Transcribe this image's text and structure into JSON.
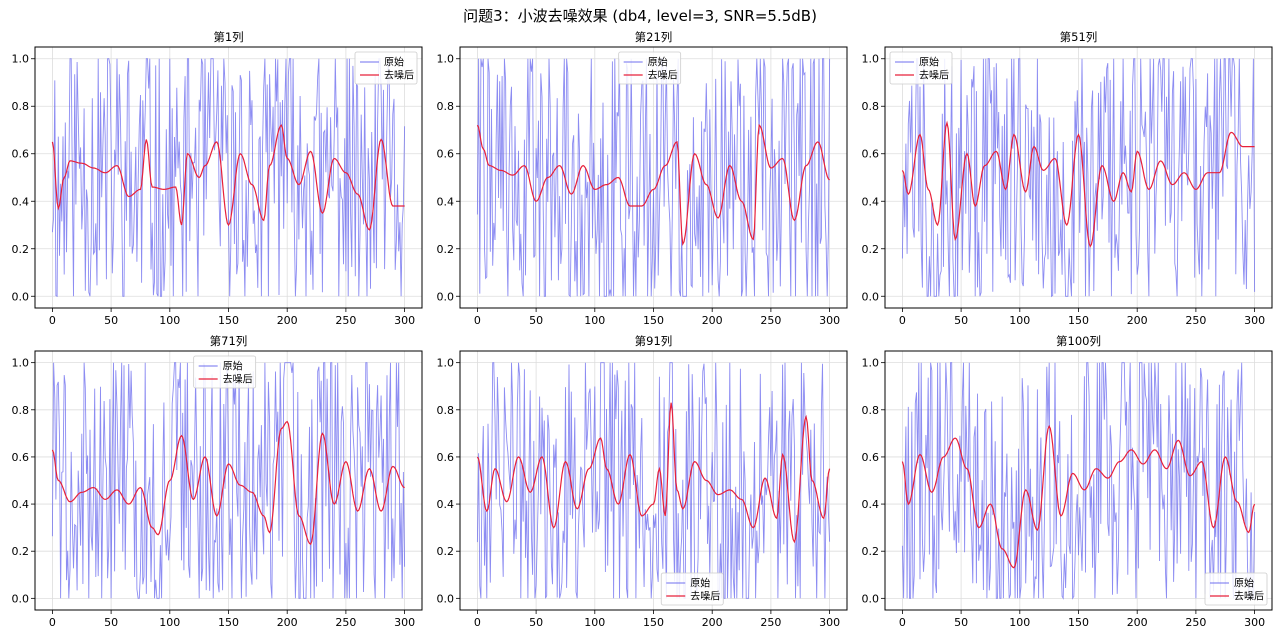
{
  "figure": {
    "title": "问题3：小波去噪效果 (db4, level=3, SNR=5.5dB)"
  },
  "colors": {
    "original": "#6666ee",
    "denoised": "#e8203a",
    "grid": "#dddddd",
    "axes": "#000000"
  },
  "chart_data": [
    {
      "type": "line",
      "title": "第1列",
      "xlim": [
        0,
        300
      ],
      "ylim": [
        0,
        1
      ],
      "xticks": [
        0,
        50,
        100,
        150,
        200,
        250,
        300
      ],
      "yticks": [
        0.0,
        0.2,
        0.4,
        0.6,
        0.8,
        1.0
      ],
      "grid": true,
      "legend": "top-right",
      "series": [
        {
          "name": "原始",
          "color": "#6666ee",
          "seed": 11
        },
        {
          "name": "去噪后",
          "color": "#e8203a",
          "x": [
            0,
            5,
            10,
            15,
            25,
            35,
            45,
            55,
            65,
            75,
            80,
            85,
            95,
            105,
            110,
            115,
            125,
            130,
            140,
            150,
            160,
            170,
            180,
            185,
            195,
            200,
            210,
            220,
            230,
            240,
            250,
            260,
            270,
            280,
            290,
            300
          ],
          "y": [
            0.65,
            0.37,
            0.5,
            0.57,
            0.56,
            0.54,
            0.52,
            0.55,
            0.42,
            0.45,
            0.66,
            0.46,
            0.45,
            0.46,
            0.3,
            0.6,
            0.5,
            0.55,
            0.65,
            0.3,
            0.6,
            0.47,
            0.32,
            0.55,
            0.72,
            0.58,
            0.47,
            0.61,
            0.35,
            0.58,
            0.52,
            0.43,
            0.28,
            0.66,
            0.38,
            0.38
          ]
        }
      ]
    },
    {
      "type": "line",
      "title": "第21列",
      "xlim": [
        0,
        300
      ],
      "ylim": [
        0,
        1
      ],
      "xticks": [
        0,
        50,
        100,
        150,
        200,
        250,
        300
      ],
      "yticks": [
        0.0,
        0.2,
        0.4,
        0.6,
        0.8,
        1.0
      ],
      "grid": true,
      "legend": "top-center",
      "series": [
        {
          "name": "原始",
          "color": "#6666ee",
          "seed": 22
        },
        {
          "name": "去噪后",
          "color": "#e8203a",
          "x": [
            0,
            5,
            10,
            20,
            30,
            40,
            50,
            60,
            70,
            80,
            90,
            100,
            110,
            120,
            130,
            140,
            150,
            160,
            170,
            175,
            185,
            195,
            205,
            215,
            225,
            235,
            240,
            250,
            260,
            270,
            280,
            290,
            300
          ],
          "y": [
            0.72,
            0.62,
            0.55,
            0.53,
            0.51,
            0.55,
            0.4,
            0.5,
            0.55,
            0.43,
            0.55,
            0.45,
            0.47,
            0.5,
            0.38,
            0.38,
            0.45,
            0.55,
            0.65,
            0.22,
            0.6,
            0.47,
            0.33,
            0.55,
            0.4,
            0.24,
            0.72,
            0.54,
            0.58,
            0.32,
            0.55,
            0.65,
            0.49
          ]
        }
      ]
    },
    {
      "type": "line",
      "title": "第51列",
      "xlim": [
        0,
        300
      ],
      "ylim": [
        0,
        1
      ],
      "xticks": [
        0,
        50,
        100,
        150,
        200,
        250,
        300
      ],
      "yticks": [
        0.0,
        0.2,
        0.4,
        0.6,
        0.8,
        1.0
      ],
      "grid": true,
      "legend": "top-left",
      "series": [
        {
          "name": "原始",
          "color": "#6666ee",
          "seed": 33
        },
        {
          "name": "去噪后",
          "color": "#e8203a",
          "x": [
            0,
            5,
            15,
            22,
            30,
            38,
            45,
            55,
            62,
            70,
            80,
            88,
            95,
            105,
            112,
            120,
            130,
            140,
            150,
            160,
            170,
            180,
            188,
            195,
            200,
            210,
            220,
            230,
            240,
            250,
            260,
            270,
            280,
            290,
            300
          ],
          "y": [
            0.53,
            0.43,
            0.68,
            0.45,
            0.3,
            0.73,
            0.24,
            0.6,
            0.38,
            0.55,
            0.61,
            0.45,
            0.68,
            0.44,
            0.63,
            0.53,
            0.58,
            0.3,
            0.68,
            0.21,
            0.55,
            0.4,
            0.52,
            0.44,
            0.61,
            0.45,
            0.57,
            0.47,
            0.52,
            0.45,
            0.52,
            0.52,
            0.69,
            0.63,
            0.63
          ]
        }
      ]
    },
    {
      "type": "line",
      "title": "第71列",
      "xlim": [
        0,
        300
      ],
      "ylim": [
        0,
        1
      ],
      "xticks": [
        0,
        50,
        100,
        150,
        200,
        250,
        300
      ],
      "yticks": [
        0.0,
        0.2,
        0.4,
        0.6,
        0.8,
        1.0
      ],
      "grid": true,
      "legend": "top-center",
      "series": [
        {
          "name": "原始",
          "color": "#6666ee",
          "seed": 44
        },
        {
          "name": "去噪后",
          "color": "#e8203a",
          "x": [
            0,
            5,
            15,
            25,
            35,
            45,
            55,
            65,
            75,
            85,
            90,
            100,
            110,
            120,
            130,
            140,
            150,
            160,
            170,
            180,
            185,
            195,
            200,
            210,
            220,
            230,
            240,
            250,
            260,
            270,
            280,
            290,
            300
          ],
          "y": [
            0.63,
            0.5,
            0.41,
            0.45,
            0.47,
            0.42,
            0.46,
            0.4,
            0.47,
            0.3,
            0.27,
            0.5,
            0.69,
            0.42,
            0.6,
            0.35,
            0.57,
            0.48,
            0.45,
            0.35,
            0.28,
            0.72,
            0.75,
            0.35,
            0.23,
            0.7,
            0.4,
            0.58,
            0.37,
            0.55,
            0.37,
            0.56,
            0.47
          ]
        }
      ]
    },
    {
      "type": "line",
      "title": "第91列",
      "xlim": [
        0,
        300
      ],
      "ylim": [
        0,
        1
      ],
      "xticks": [
        0,
        50,
        100,
        150,
        200,
        250,
        300
      ],
      "yticks": [
        0.0,
        0.2,
        0.4,
        0.6,
        0.8,
        1.0
      ],
      "grid": true,
      "legend": "bottom-center",
      "series": [
        {
          "name": "原始",
          "color": "#6666ee",
          "seed": 55
        },
        {
          "name": "去噪后",
          "color": "#e8203a",
          "x": [
            0,
            8,
            15,
            25,
            35,
            45,
            55,
            65,
            75,
            85,
            95,
            105,
            110,
            120,
            130,
            140,
            150,
            155,
            160,
            165,
            170,
            175,
            185,
            195,
            205,
            215,
            225,
            235,
            245,
            255,
            260,
            270,
            280,
            285,
            295,
            300
          ],
          "y": [
            0.6,
            0.37,
            0.55,
            0.41,
            0.6,
            0.45,
            0.6,
            0.3,
            0.58,
            0.38,
            0.55,
            0.68,
            0.55,
            0.4,
            0.61,
            0.35,
            0.4,
            0.55,
            0.35,
            0.83,
            0.46,
            0.38,
            0.58,
            0.5,
            0.44,
            0.46,
            0.42,
            0.3,
            0.51,
            0.34,
            0.61,
            0.24,
            0.77,
            0.5,
            0.34,
            0.55
          ]
        }
      ]
    },
    {
      "type": "line",
      "title": "第100列",
      "xlim": [
        0,
        300
      ],
      "ylim": [
        0,
        1
      ],
      "xticks": [
        0,
        50,
        100,
        150,
        200,
        250,
        300
      ],
      "yticks": [
        0.0,
        0.2,
        0.4,
        0.6,
        0.8,
        1.0
      ],
      "grid": true,
      "legend": "bottom-right",
      "series": [
        {
          "name": "原始",
          "color": "#6666ee",
          "seed": 66
        },
        {
          "name": "去噪后",
          "color": "#e8203a",
          "x": [
            0,
            5,
            15,
            25,
            35,
            45,
            55,
            65,
            75,
            85,
            95,
            105,
            115,
            125,
            135,
            145,
            155,
            165,
            175,
            185,
            195,
            205,
            215,
            225,
            235,
            245,
            255,
            265,
            275,
            285,
            295,
            300
          ],
          "y": [
            0.58,
            0.4,
            0.61,
            0.45,
            0.6,
            0.68,
            0.55,
            0.3,
            0.4,
            0.21,
            0.13,
            0.46,
            0.29,
            0.73,
            0.35,
            0.53,
            0.46,
            0.55,
            0.51,
            0.58,
            0.63,
            0.57,
            0.63,
            0.55,
            0.67,
            0.52,
            0.58,
            0.3,
            0.6,
            0.41,
            0.28,
            0.4
          ]
        }
      ]
    }
  ]
}
